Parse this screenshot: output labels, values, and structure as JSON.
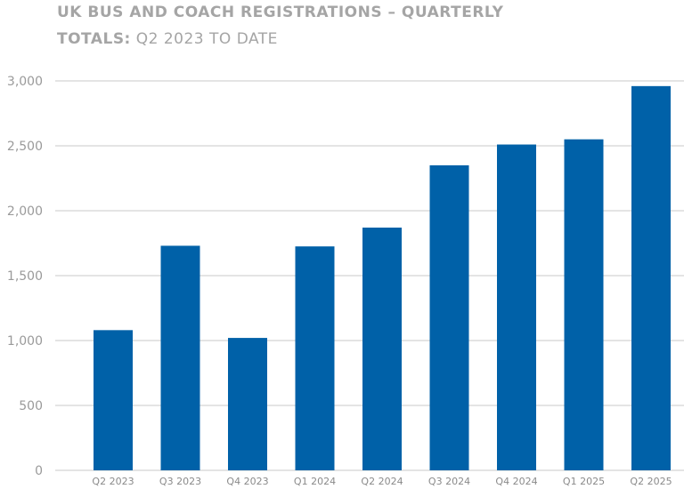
{
  "title": {
    "line1": "UK BUS AND COACH REGISTRATIONS – QUARTERLY",
    "line2_bold": "TOTALS:",
    "line2_rest": " Q2 2023 TO DATE"
  },
  "chart_data": {
    "type": "bar",
    "title": "UK BUS AND COACH REGISTRATIONS – QUARTERLY TOTALS: Q2 2023 TO DATE",
    "categories": [
      "Q2 2023",
      "Q3 2023",
      "Q4 2023",
      "Q1 2024",
      "Q2 2024",
      "Q3 2024",
      "Q4 2024",
      "Q1 2025",
      "Q2 2025"
    ],
    "values": [
      1080,
      1730,
      1020,
      1725,
      1870,
      2350,
      2510,
      2550,
      2960
    ],
    "ylim": [
      0,
      3000
    ],
    "yticks": [
      0,
      500,
      1000,
      1500,
      2000,
      2500,
      3000
    ],
    "ytick_labels": [
      "0",
      "500",
      "1,000",
      "1,500",
      "2,000",
      "2,500",
      "3,000"
    ],
    "grid": true,
    "bar_color": "#0061a8",
    "grid_color": "#c8c8c8"
  }
}
